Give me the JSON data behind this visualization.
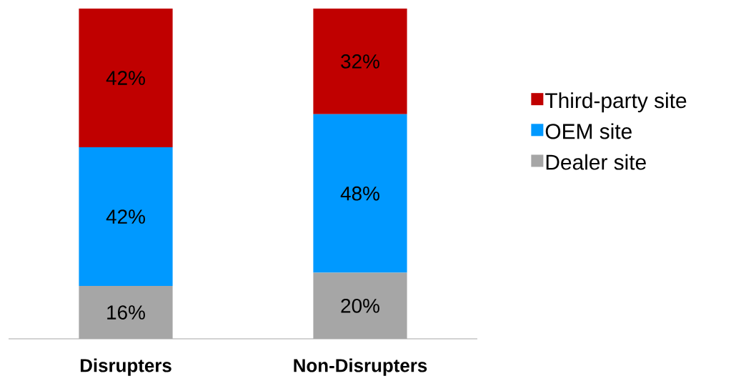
{
  "chart_data": {
    "type": "bar",
    "stacked": true,
    "categories": [
      "Disrupters",
      "Non-Disrupters"
    ],
    "series": [
      {
        "name": "Dealer site",
        "color": "#a6a6a6",
        "values": [
          16,
          20
        ],
        "value_labels": [
          "16%",
          "20%"
        ]
      },
      {
        "name": "OEM site",
        "color": "#0099ff",
        "values": [
          42,
          48
        ],
        "value_labels": [
          "42%",
          "48%"
        ]
      },
      {
        "name": "Third-party site",
        "color": "#c00000",
        "values": [
          42,
          32
        ],
        "value_labels": [
          "42%",
          "32%"
        ]
      }
    ],
    "ylim": [
      0,
      100
    ],
    "legend": "right"
  }
}
